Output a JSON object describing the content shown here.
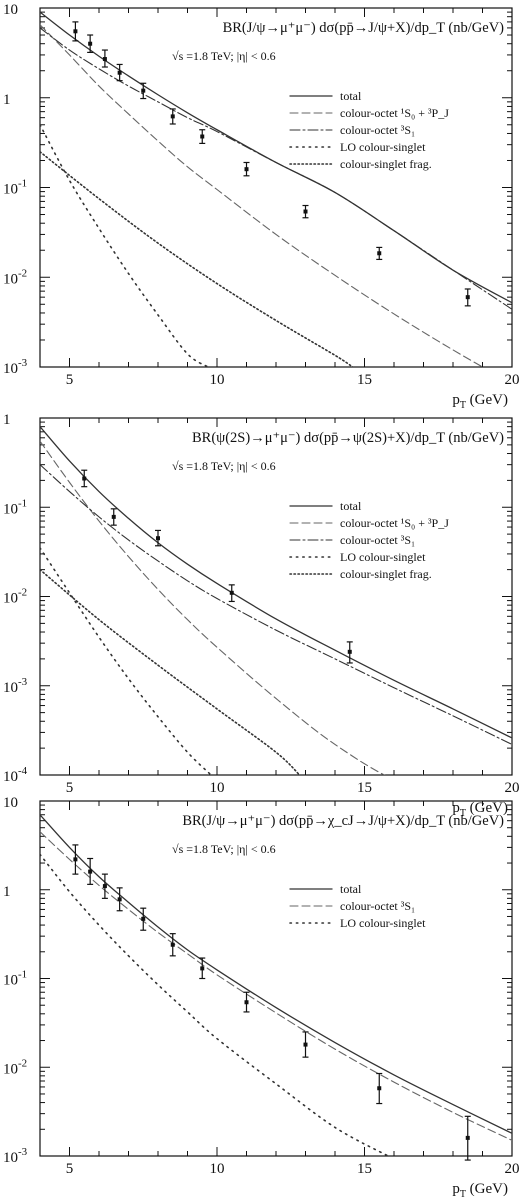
{
  "chart_data": [
    {
      "type": "line",
      "title": "BR(J/ψ→μ⁺μ⁻) dσ(pp̄→J/ψ+X)/dp_T (nb/GeV)",
      "subtitle": "√s =1.8 TeV; |η| < 0.6",
      "xlabel": "p_T (GeV)",
      "ylabel": "",
      "xlim": [
        4,
        20
      ],
      "ylim": [
        0.001,
        10
      ],
      "yscale": "log",
      "x_ticks": [
        5,
        10,
        15,
        20
      ],
      "y_ticks": [
        {
          "v": 0.001,
          "base": "10",
          "exp": "-3"
        },
        {
          "v": 0.01,
          "base": "10",
          "exp": "-2"
        },
        {
          "v": 0.1,
          "base": "10",
          "exp": "-1"
        },
        {
          "v": 1,
          "base": "1",
          "exp": ""
        },
        {
          "v": 10,
          "base": "10",
          "exp": ""
        }
      ],
      "legend_position": "top-right",
      "series": [
        {
          "name": "total",
          "style": "solid",
          "x": [
            4,
            5,
            6,
            7,
            8,
            9,
            10,
            12,
            14,
            16,
            18,
            20
          ],
          "values": [
            9,
            5,
            2.9,
            1.75,
            1.08,
            0.68,
            0.44,
            0.19,
            0.088,
            0.033,
            0.012,
            0.0052
          ]
        },
        {
          "name": "colour-octet ¹S₀ + ³P_J",
          "style": "dashed",
          "x": [
            4,
            5,
            6,
            7,
            8,
            9,
            10,
            12,
            14,
            16,
            18,
            20
          ],
          "values": [
            6.5,
            3.0,
            1.35,
            0.66,
            0.33,
            0.17,
            0.095,
            0.03,
            0.0105,
            0.0039,
            0.00155,
            0.00065
          ]
        },
        {
          "name": "colour-octet ³S₁",
          "style": "dashdot",
          "x": [
            4,
            5,
            6,
            7,
            8,
            9,
            10,
            12,
            14,
            16,
            18,
            20
          ],
          "values": [
            6,
            3.4,
            2.1,
            1.35,
            0.9,
            0.6,
            0.42,
            0.19,
            0.088,
            0.033,
            0.012,
            0.0044
          ]
        },
        {
          "name": "LO colour-singlet",
          "style": "dotted-sparse",
          "x": [
            4,
            5,
            6,
            7,
            8,
            9,
            9.7
          ],
          "values": [
            0.5,
            0.12,
            0.035,
            0.011,
            0.0038,
            0.0014,
            0.001
          ]
        },
        {
          "name": "colour-singlet frag.",
          "style": "dotted",
          "x": [
            4,
            6,
            8,
            10,
            12,
            14,
            14.6
          ],
          "values": [
            0.25,
            0.075,
            0.024,
            0.0085,
            0.0033,
            0.00135,
            0.001
          ]
        }
      ],
      "points": [
        {
          "x": 5.2,
          "y": 5.5,
          "lo": 4.3,
          "hi": 7.0
        },
        {
          "x": 5.7,
          "y": 4.0,
          "lo": 3.2,
          "hi": 5.0
        },
        {
          "x": 6.2,
          "y": 2.7,
          "lo": 2.2,
          "hi": 3.4
        },
        {
          "x": 6.7,
          "y": 1.9,
          "lo": 1.55,
          "hi": 2.35
        },
        {
          "x": 7.5,
          "y": 1.2,
          "lo": 0.98,
          "hi": 1.45
        },
        {
          "x": 8.5,
          "y": 0.62,
          "lo": 0.51,
          "hi": 0.75
        },
        {
          "x": 9.5,
          "y": 0.37,
          "lo": 0.31,
          "hi": 0.44
        },
        {
          "x": 11.0,
          "y": 0.16,
          "lo": 0.135,
          "hi": 0.19
        },
        {
          "x": 13.0,
          "y": 0.054,
          "lo": 0.046,
          "hi": 0.063
        },
        {
          "x": 15.5,
          "y": 0.0185,
          "lo": 0.0158,
          "hi": 0.0215
        },
        {
          "x": 18.5,
          "y": 0.006,
          "lo": 0.0048,
          "hi": 0.0074
        }
      ]
    },
    {
      "type": "line",
      "title": "BR(ψ(2S)→μ⁺μ⁻) dσ(pp̄→ψ(2S)+X)/dp_T (nb/GeV)",
      "subtitle": "√s =1.8 TeV; |η| < 0.6",
      "xlabel": "p_T (GeV)",
      "ylabel": "",
      "xlim": [
        4,
        20
      ],
      "ylim": [
        0.0001,
        1
      ],
      "yscale": "log",
      "x_ticks": [
        5,
        10,
        15,
        20
      ],
      "y_ticks": [
        {
          "v": 0.0001,
          "base": "10",
          "exp": "-4"
        },
        {
          "v": 0.001,
          "base": "10",
          "exp": "-3"
        },
        {
          "v": 0.01,
          "base": "10",
          "exp": "-2"
        },
        {
          "v": 0.1,
          "base": "10",
          "exp": "-1"
        },
        {
          "v": 1,
          "base": "1",
          "exp": ""
        }
      ],
      "legend_position": "top-right",
      "series": [
        {
          "name": "total",
          "style": "solid",
          "x": [
            4,
            5,
            6,
            7,
            8,
            9,
            10,
            12,
            14,
            16,
            18,
            20
          ],
          "values": [
            0.8,
            0.33,
            0.15,
            0.075,
            0.04,
            0.023,
            0.014,
            0.0056,
            0.0025,
            0.00115,
            0.00055,
            0.00026
          ]
        },
        {
          "name": "colour-octet ¹S₀ + ³P_J",
          "style": "dashed",
          "x": [
            4,
            5,
            6,
            7,
            8,
            9,
            10,
            12,
            14,
            16,
            17
          ],
          "values": [
            0.55,
            0.19,
            0.07,
            0.028,
            0.012,
            0.0055,
            0.0027,
            0.00072,
            0.00022,
            9e-05,
            0.0001
          ]
        },
        {
          "name": "colour-octet ³S₁",
          "style": "dashdot",
          "x": [
            4,
            5,
            6,
            7,
            8,
            9,
            10,
            12,
            14,
            16,
            18,
            20
          ],
          "values": [
            0.3,
            0.15,
            0.078,
            0.043,
            0.025,
            0.015,
            0.0095,
            0.0042,
            0.002,
            0.00095,
            0.00046,
            0.00022
          ]
        },
        {
          "name": "LO colour-singlet",
          "style": "dotted-sparse",
          "x": [
            4,
            5,
            6,
            7,
            8,
            9,
            9.8
          ],
          "values": [
            0.035,
            0.011,
            0.0035,
            0.0012,
            0.00045,
            0.00018,
            0.0001
          ]
        },
        {
          "name": "colour-singlet frag.",
          "style": "dotted",
          "x": [
            4,
            6,
            8,
            10,
            12,
            12.8
          ],
          "values": [
            0.02,
            0.0055,
            0.0017,
            0.00055,
            0.00018,
            0.0001
          ]
        }
      ],
      "points": [
        {
          "x": 5.5,
          "y": 0.21,
          "lo": 0.17,
          "hi": 0.26
        },
        {
          "x": 6.5,
          "y": 0.078,
          "lo": 0.063,
          "hi": 0.096
        },
        {
          "x": 8.0,
          "y": 0.045,
          "lo": 0.037,
          "hi": 0.055
        },
        {
          "x": 10.5,
          "y": 0.011,
          "lo": 0.0088,
          "hi": 0.0135
        },
        {
          "x": 14.5,
          "y": 0.0024,
          "lo": 0.0018,
          "hi": 0.0031
        }
      ]
    },
    {
      "type": "line",
      "title": "BR(J/ψ→μ⁺μ⁻) dσ(pp̄→χ_cJ→J/ψ+X)/dp_T (nb/GeV)",
      "subtitle": "√s =1.8 TeV; |η| < 0.6",
      "xlabel": "p_T (GeV)",
      "ylabel": "",
      "xlim": [
        4,
        20
      ],
      "ylim": [
        0.001,
        10
      ],
      "yscale": "log",
      "x_ticks": [
        5,
        10,
        15,
        20
      ],
      "y_ticks": [
        {
          "v": 0.001,
          "base": "10",
          "exp": "-3"
        },
        {
          "v": 0.01,
          "base": "10",
          "exp": "-2"
        },
        {
          "v": 0.1,
          "base": "10",
          "exp": "-1"
        },
        {
          "v": 1,
          "base": "1",
          "exp": ""
        },
        {
          "v": 10,
          "base": "10",
          "exp": ""
        }
      ],
      "legend_position": "top-right",
      "series": [
        {
          "name": "total",
          "style": "solid",
          "x": [
            4,
            5,
            6,
            7,
            8,
            9,
            10,
            12,
            14,
            16,
            18,
            20
          ],
          "values": [
            7,
            3.0,
            1.4,
            0.72,
            0.38,
            0.21,
            0.125,
            0.047,
            0.019,
            0.0082,
            0.0038,
            0.0018
          ]
        },
        {
          "name": "colour-octet ³S₁",
          "style": "dashed",
          "x": [
            4,
            5,
            6,
            7,
            8,
            9,
            10,
            12,
            14,
            16,
            18,
            20
          ],
          "values": [
            4.5,
            2.2,
            1.12,
            0.6,
            0.33,
            0.19,
            0.11,
            0.041,
            0.016,
            0.0068,
            0.0031,
            0.0015
          ]
        },
        {
          "name": "LO colour-singlet",
          "style": "dotted-sparse",
          "x": [
            4,
            5,
            6,
            7,
            8,
            9,
            10,
            12,
            14,
            15.8
          ],
          "values": [
            2.5,
            0.95,
            0.4,
            0.18,
            0.085,
            0.042,
            0.021,
            0.0065,
            0.0021,
            0.001
          ]
        }
      ],
      "points": [
        {
          "x": 5.2,
          "y": 2.2,
          "lo": 1.5,
          "hi": 3.2
        },
        {
          "x": 5.7,
          "y": 1.6,
          "lo": 1.15,
          "hi": 2.25
        },
        {
          "x": 6.2,
          "y": 1.1,
          "lo": 0.8,
          "hi": 1.5
        },
        {
          "x": 6.7,
          "y": 0.78,
          "lo": 0.58,
          "hi": 1.05
        },
        {
          "x": 7.5,
          "y": 0.47,
          "lo": 0.35,
          "hi": 0.62
        },
        {
          "x": 8.5,
          "y": 0.24,
          "lo": 0.18,
          "hi": 0.32
        },
        {
          "x": 9.5,
          "y": 0.13,
          "lo": 0.1,
          "hi": 0.17
        },
        {
          "x": 11.0,
          "y": 0.054,
          "lo": 0.042,
          "hi": 0.07
        },
        {
          "x": 13.0,
          "y": 0.018,
          "lo": 0.013,
          "hi": 0.025
        },
        {
          "x": 15.5,
          "y": 0.0058,
          "lo": 0.0039,
          "hi": 0.0085
        },
        {
          "x": 18.5,
          "y": 0.0016,
          "lo": 0.0009,
          "hi": 0.0028
        }
      ]
    }
  ]
}
